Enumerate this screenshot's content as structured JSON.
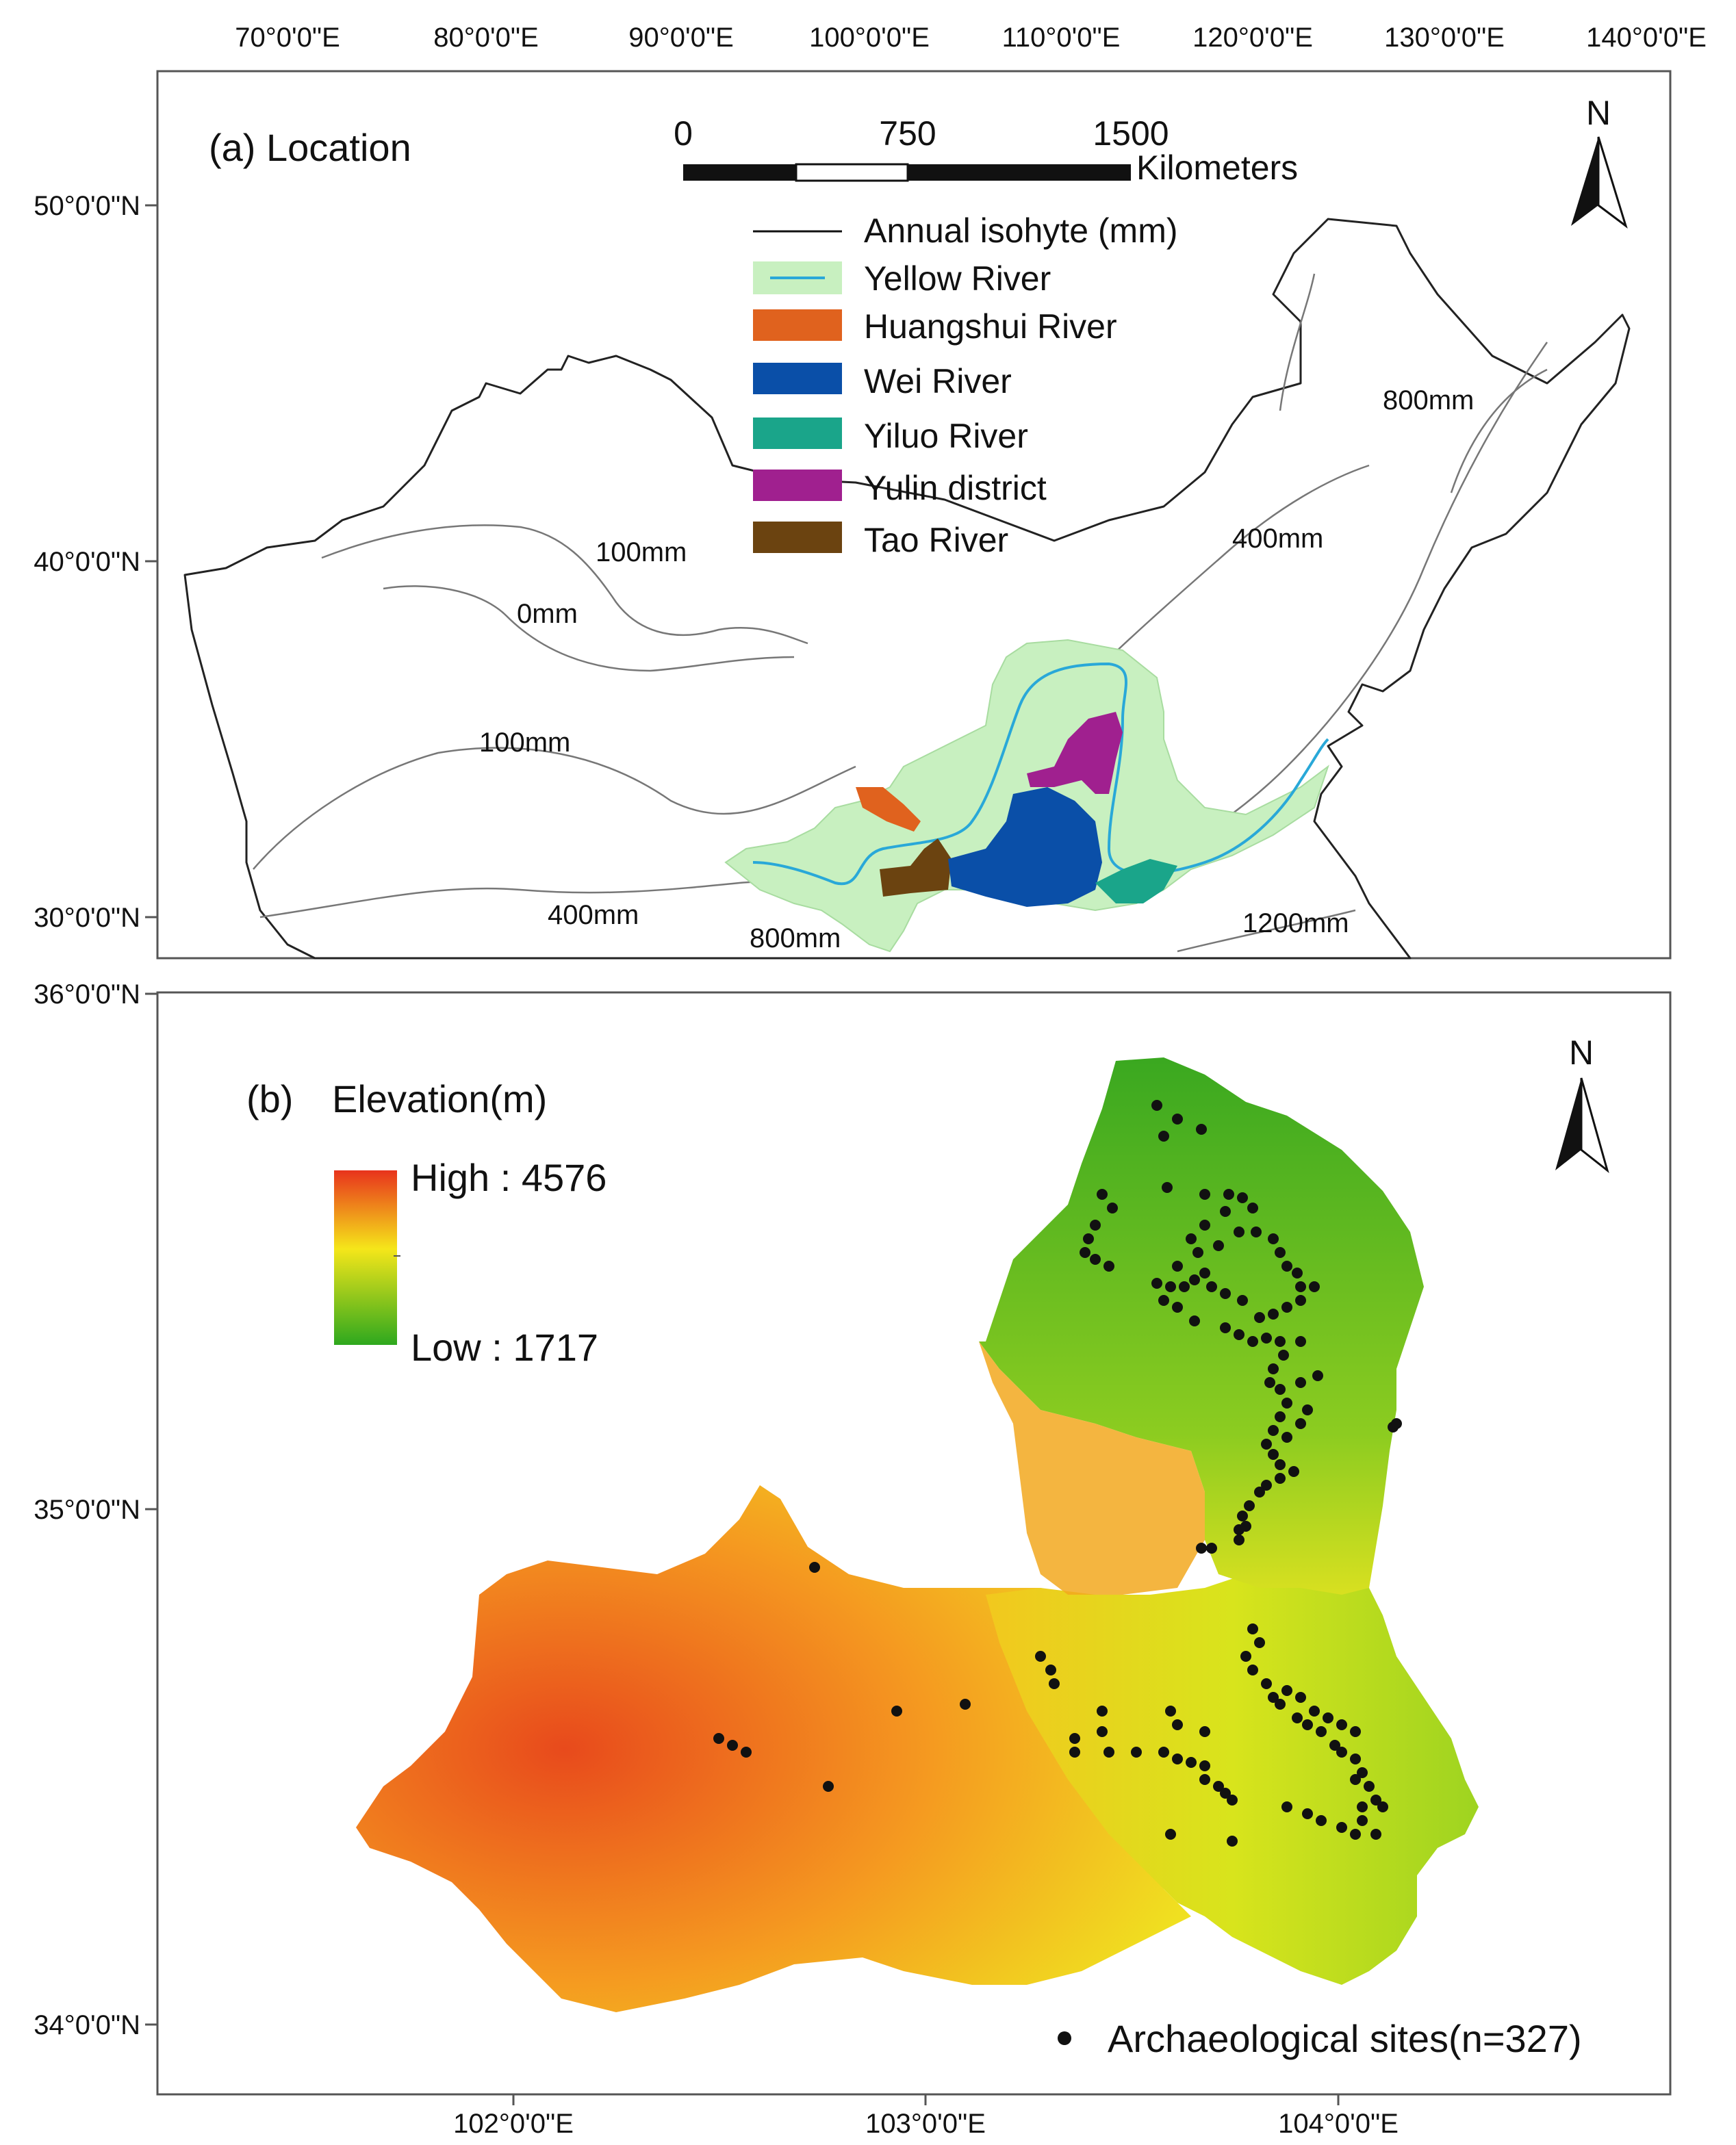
{
  "panel_a": {
    "title": "(a) Location",
    "lon_ticks": [
      "70°0'0\"E",
      "80°0'0\"E",
      "90°0'0\"E",
      "100°0'0\"E",
      "110°0'0\"E",
      "120°0'0\"E",
      "130°0'0\"E",
      "140°0'0\"E"
    ],
    "lat_ticks": [
      "50°0'0\"N",
      "40°0'0\"N",
      "30°0'0\"N"
    ],
    "scale_bar": {
      "labels": [
        "0",
        "750",
        "1500"
      ],
      "unit": "Kilometers"
    },
    "north_label": "N",
    "legend": [
      {
        "label": "Annual isohyte (mm)",
        "kind": "line",
        "color": "#111111"
      },
      {
        "label": "Yellow River",
        "kind": "river",
        "color": "#c8f0c0",
        "line_color": "#29a8d8"
      },
      {
        "label": "Huangshui River",
        "kind": "patch",
        "color": "#e0621e"
      },
      {
        "label": "Wei River",
        "kind": "patch",
        "color": "#0a4fa8"
      },
      {
        "label": "Yiluo River",
        "kind": "patch",
        "color": "#1aa58a"
      },
      {
        "label": "Yulin district",
        "kind": "patch",
        "color": "#a0208f"
      },
      {
        "label": "Tao River",
        "kind": "patch",
        "color": "#6b4310"
      }
    ],
    "isohyet_labels": [
      "100mm",
      "0mm",
      "100mm",
      "400mm",
      "800mm",
      "400mm",
      "800mm",
      "1200mm"
    ]
  },
  "panel_b": {
    "title_prefix": "(b)",
    "title": "Elevation(m)",
    "legend_high": "High : 4576",
    "legend_low": "Low : 1717",
    "lon_ticks": [
      "102°0'0\"E",
      "103°0'0\"E",
      "104°0'0\"E"
    ],
    "lat_ticks": [
      "36°0'0\"N",
      "35°0'0\"N",
      "34°0'0\"N"
    ],
    "north_label": "N",
    "sites_label": "Archaeological sites(n=327)",
    "colors": {
      "high": "#e8331c",
      "mid": "#f5e61a",
      "low": "#2ea81e"
    }
  }
}
